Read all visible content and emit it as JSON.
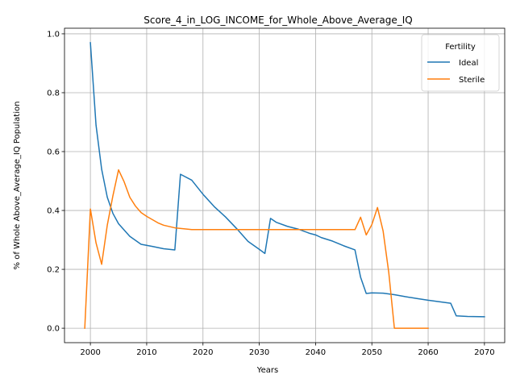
{
  "chart_data": {
    "type": "line",
    "title": "Score_4_in_LOG_INCOME_for_Whole_Above_Average_IQ",
    "xlabel": "Years",
    "ylabel": "% of Whole Above_Average_IQ Population",
    "xlim": [
      1995.4,
      2073.6
    ],
    "ylim": [
      -0.049,
      1.019
    ],
    "xticks": [
      2000,
      2010,
      2020,
      2030,
      2040,
      2050,
      2060,
      2070
    ],
    "xtick_labels": [
      "2000",
      "2010",
      "2020",
      "2030",
      "2040",
      "2050",
      "2060",
      "2070"
    ],
    "yticks": [
      0.0,
      0.2,
      0.4,
      0.6,
      0.8,
      1.0
    ],
    "ytick_labels": [
      "0.0",
      "0.2",
      "0.4",
      "0.6",
      "0.8",
      "1.0"
    ],
    "grid": true,
    "legend": {
      "title": "Fertility",
      "placement": "top-right"
    },
    "series": [
      {
        "name": "Ideal",
        "color": "#1f77b4",
        "points": [
          [
            2000,
            0.97
          ],
          [
            2001,
            0.69
          ],
          [
            2002,
            0.54
          ],
          [
            2003,
            0.445
          ],
          [
            2004,
            0.39
          ],
          [
            2005,
            0.355
          ],
          [
            2007,
            0.312
          ],
          [
            2009,
            0.285
          ],
          [
            2011,
            0.278
          ],
          [
            2013,
            0.27
          ],
          [
            2015,
            0.266
          ],
          [
            2016,
            0.523
          ],
          [
            2018,
            0.503
          ],
          [
            2020,
            0.455
          ],
          [
            2022,
            0.413
          ],
          [
            2024,
            0.378
          ],
          [
            2026,
            0.338
          ],
          [
            2028,
            0.295
          ],
          [
            2030,
            0.268
          ],
          [
            2031,
            0.254
          ],
          [
            2032,
            0.373
          ],
          [
            2033,
            0.36
          ],
          [
            2035,
            0.346
          ],
          [
            2037,
            0.336
          ],
          [
            2039,
            0.322
          ],
          [
            2040,
            0.317
          ],
          [
            2041,
            0.308
          ],
          [
            2043,
            0.296
          ],
          [
            2045,
            0.28
          ],
          [
            2047,
            0.266
          ],
          [
            2048,
            0.173
          ],
          [
            2049,
            0.118
          ],
          [
            2050,
            0.12
          ],
          [
            2052,
            0.119
          ],
          [
            2054,
            0.114
          ],
          [
            2056,
            0.107
          ],
          [
            2058,
            0.101
          ],
          [
            2060,
            0.095
          ],
          [
            2062,
            0.09
          ],
          [
            2064,
            0.085
          ],
          [
            2065,
            0.042
          ],
          [
            2067,
            0.04
          ],
          [
            2070,
            0.039
          ]
        ]
      },
      {
        "name": "Sterile",
        "color": "#ff7f0e",
        "points": [
          [
            1999,
            0.0
          ],
          [
            2000,
            0.405
          ],
          [
            2001,
            0.29
          ],
          [
            2002,
            0.217
          ],
          [
            2003,
            0.35
          ],
          [
            2004,
            0.45
          ],
          [
            2005,
            0.538
          ],
          [
            2006,
            0.497
          ],
          [
            2007,
            0.445
          ],
          [
            2008,
            0.415
          ],
          [
            2009,
            0.393
          ],
          [
            2010,
            0.38
          ],
          [
            2012,
            0.358
          ],
          [
            2013,
            0.35
          ],
          [
            2015,
            0.341
          ],
          [
            2018,
            0.335
          ],
          [
            2020,
            0.335
          ],
          [
            2030,
            0.335
          ],
          [
            2040,
            0.335
          ],
          [
            2047,
            0.335
          ],
          [
            2048,
            0.377
          ],
          [
            2049,
            0.317
          ],
          [
            2050,
            0.352
          ],
          [
            2051,
            0.41
          ],
          [
            2052,
            0.33
          ],
          [
            2053,
            0.19
          ],
          [
            2054,
            0.0
          ],
          [
            2055,
            0.0
          ],
          [
            2060,
            0.0
          ]
        ]
      }
    ]
  }
}
